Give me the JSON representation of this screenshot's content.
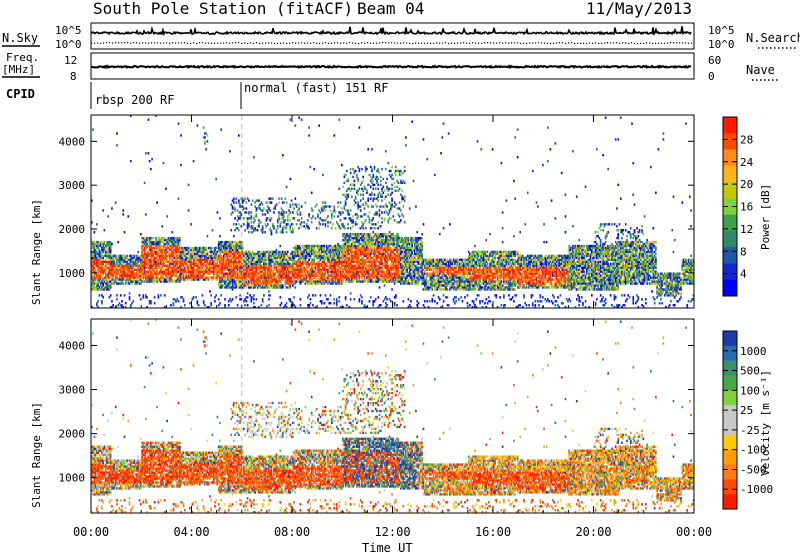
{
  "header": {
    "station": "South Pole Station (fitACF)",
    "beam": "Beam 04",
    "date": "11/May/2013"
  },
  "aux_panels": {
    "nsky": {
      "label": "N.Sky",
      "ticks_left": [
        "10^5",
        "10^0"
      ],
      "ticks_right": [
        "10^5",
        "10^0"
      ],
      "right_label": "N.Search"
    },
    "freq": {
      "label_line1": "Freq.",
      "label_line2": "[MHz]",
      "ticks_left": [
        "12",
        "8"
      ],
      "ticks_right": [
        "60",
        "0"
      ],
      "right_label": "Nave"
    },
    "cpid": {
      "label": "CPID",
      "segments": [
        {
          "start": 0,
          "end": 6,
          "text": "rbsp 200 RF"
        },
        {
          "start": 6,
          "end": 24,
          "text": "normal (fast) 151 RF"
        }
      ]
    }
  },
  "chart_data": [
    {
      "type": "heatmap",
      "name": "power",
      "ylabel": "Slant Range [km]",
      "ylim": [
        200,
        4600
      ],
      "yticks": [
        1000,
        2000,
        3000,
        4000
      ],
      "xlim": [
        0,
        24
      ],
      "xticks": [
        0,
        4,
        8,
        12,
        16,
        20,
        24
      ],
      "xticklabels": [
        "00:00",
        "04:00",
        "08:00",
        "12:00",
        "16:00",
        "20:00",
        "00:00"
      ],
      "colorbar": {
        "label": "Power [dB]",
        "ticks": [
          "28",
          "24",
          "20",
          "16",
          "12",
          "8",
          "4"
        ],
        "colors": [
          "#ff1a00",
          "#ff4a00",
          "#ff8c1a",
          "#ffb21a",
          "#c8c800",
          "#7cd238",
          "#3aa04a",
          "#2f8a6a",
          "#1e5aa8",
          "#1428d2",
          "#0000ff"
        ]
      },
      "bands": [
        {
          "start": 0.0,
          "end": 0.8,
          "low": 600,
          "high": 1700
        },
        {
          "start": 0.8,
          "end": 2.0,
          "low": 700,
          "high": 1400
        },
        {
          "start": 2.0,
          "end": 3.5,
          "low": 750,
          "high": 1800
        },
        {
          "start": 3.5,
          "end": 5.0,
          "low": 800,
          "high": 1550
        },
        {
          "start": 5.0,
          "end": 6.0,
          "low": 650,
          "high": 1700
        },
        {
          "start": 6.0,
          "end": 8.0,
          "low": 650,
          "high": 1500
        },
        {
          "start": 8.0,
          "end": 10.0,
          "low": 700,
          "high": 1600
        },
        {
          "start": 10.0,
          "end": 12.3,
          "low": 750,
          "high": 1900
        },
        {
          "start": 12.3,
          "end": 13.2,
          "low": 700,
          "high": 1800
        },
        {
          "start": 13.2,
          "end": 15.0,
          "low": 600,
          "high": 1300
        },
        {
          "start": 15.0,
          "end": 17.0,
          "low": 600,
          "high": 1500
        },
        {
          "start": 17.0,
          "end": 19.0,
          "low": 650,
          "high": 1400
        },
        {
          "start": 19.0,
          "end": 21.0,
          "low": 600,
          "high": 1600
        },
        {
          "start": 21.0,
          "end": 22.5,
          "low": 700,
          "high": 1700
        },
        {
          "start": 22.5,
          "end": 23.5,
          "low": 450,
          "high": 1000
        },
        {
          "start": 23.5,
          "end": 24.0,
          "low": 700,
          "high": 1300
        }
      ],
      "core": [
        {
          "start": 0.0,
          "end": 0.8,
          "low": 850,
          "high": 1300
        },
        {
          "start": 0.8,
          "end": 2.0,
          "low": 850,
          "high": 1150
        },
        {
          "start": 2.0,
          "end": 3.5,
          "low": 850,
          "high": 1600
        },
        {
          "start": 3.5,
          "end": 5.0,
          "low": 850,
          "high": 1300
        },
        {
          "start": 5.0,
          "end": 6.0,
          "low": 850,
          "high": 1500
        },
        {
          "start": 6.0,
          "end": 8.0,
          "low": 700,
          "high": 1150
        },
        {
          "start": 8.0,
          "end": 10.0,
          "low": 800,
          "high": 1250
        },
        {
          "start": 10.0,
          "end": 12.3,
          "low": 850,
          "high": 1550
        },
        {
          "start": 13.2,
          "end": 15.0,
          "low": 950,
          "high": 1100
        },
        {
          "start": 15.0,
          "end": 17.0,
          "low": 800,
          "high": 1100
        },
        {
          "start": 17.0,
          "end": 19.0,
          "low": 700,
          "high": 1100
        }
      ],
      "sparse": [
        {
          "start": 5.5,
          "end": 8.0,
          "low": 1900,
          "high": 2700
        },
        {
          "start": 8.0,
          "end": 11.5,
          "low": 2000,
          "high": 2600
        },
        {
          "start": 4.4,
          "end": 4.6,
          "low": 3900,
          "high": 4300
        },
        {
          "start": 10.0,
          "end": 12.5,
          "low": 2100,
          "high": 3400
        },
        {
          "start": 20.0,
          "end": 22.0,
          "low": 1400,
          "high": 2100
        }
      ]
    },
    {
      "type": "heatmap",
      "name": "velocity",
      "ylabel": "Slant Range [km]",
      "ylim": [
        200,
        4600
      ],
      "yticks": [
        1000,
        2000,
        3000,
        4000
      ],
      "xlim": [
        0,
        24
      ],
      "xticks": [
        0,
        4,
        8,
        12,
        16,
        20,
        24
      ],
      "xticklabels": [
        "00:00",
        "04:00",
        "08:00",
        "12:00",
        "16:00",
        "20:00",
        "00:00"
      ],
      "xlabel": "Time UT",
      "colorbar": {
        "label": "Velocity [m s⁻¹]",
        "ticks": [
          "1000",
          "500",
          "100",
          "25",
          "-25",
          "-100",
          "-500",
          "-1000"
        ],
        "colors": [
          "#1e3aa8",
          "#2a6ab0",
          "#3f8f6a",
          "#48a848",
          "#7ed23a",
          "#c8c8c8",
          "#c8c8c8",
          "#ffcc00",
          "#ffa000",
          "#ff7a14",
          "#ff4a00",
          "#ff1a00"
        ]
      }
    }
  ]
}
